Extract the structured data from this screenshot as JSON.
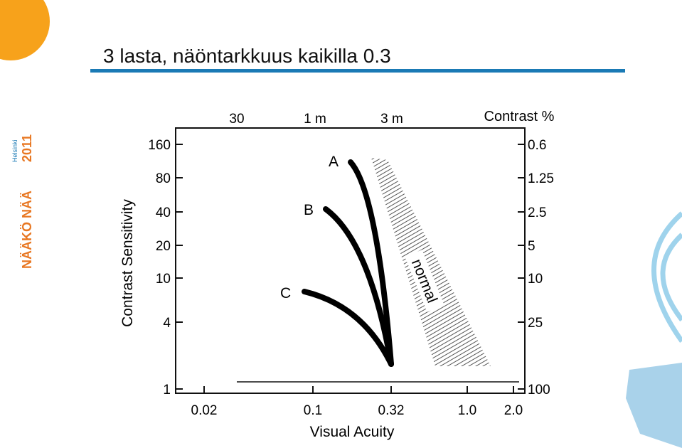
{
  "slide": {
    "title": "3 lasta, näöntarkkuus kaikilla 0.3",
    "logo": {
      "name": "NÄÄKÖ NÄÄ",
      "city": "Helsinki",
      "year": "2011"
    },
    "figure": {
      "y_label": "Contrast Sensitivity",
      "x_label": "Visual Acuity",
      "right_title": "Contrast %",
      "left_ticks": [
        "160",
        "80",
        "40",
        "20",
        "10",
        "4",
        "1"
      ],
      "right_ticks": [
        "0.6",
        "1.25",
        "2.5",
        "5",
        "10",
        "25",
        "100"
      ],
      "top_ticks": [
        "30",
        "1 m",
        "3 m"
      ],
      "bottom_ticks": [
        "0.02",
        "0.1",
        "0.32",
        "1.0",
        "2.0"
      ],
      "curves": [
        "A",
        "B",
        "C"
      ],
      "band_label": "normal"
    }
  }
}
